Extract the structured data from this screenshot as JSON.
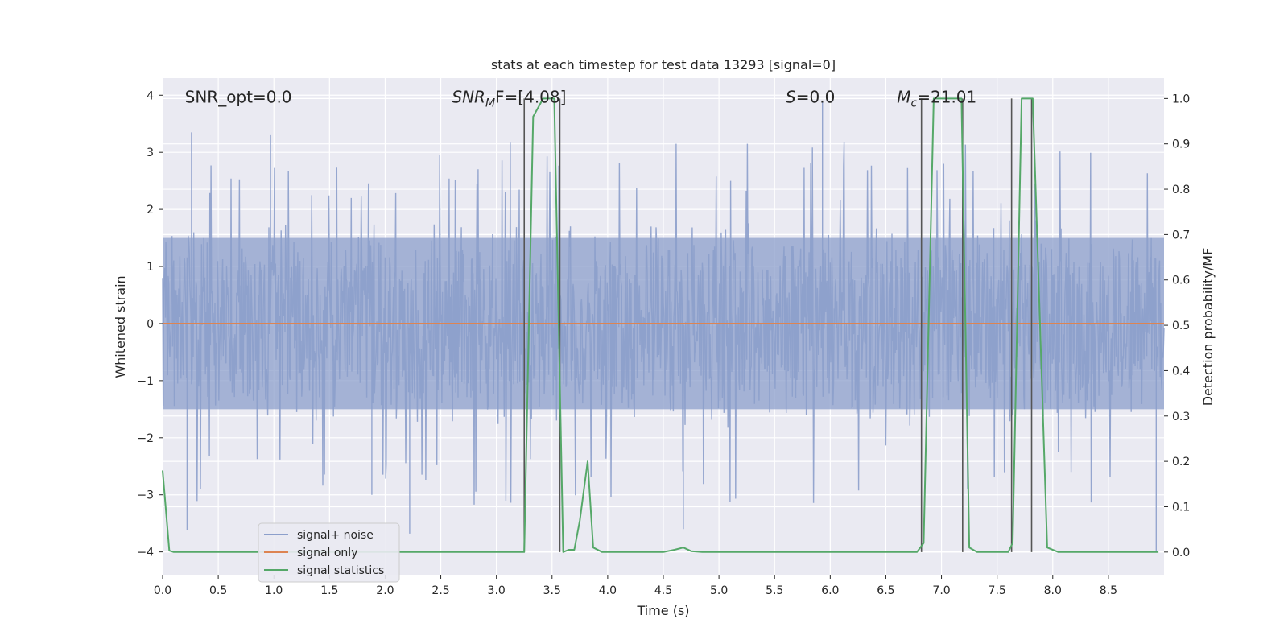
{
  "chart_data": {
    "type": "line",
    "title": "stats at each timestep for test data 13293 [signal=0]",
    "xlabel": "Time (s)",
    "ylabel_left": "Whitened strain",
    "ylabel_right": "Detection probability/MF",
    "xlim": [
      0.0,
      9.0
    ],
    "ylim_left": [
      -4.4,
      4.3
    ],
    "ylim_right": [
      -0.05,
      1.045
    ],
    "x_ticks": [
      "0.0",
      "0.5",
      "1.0",
      "1.5",
      "2.0",
      "2.5",
      "3.0",
      "3.5",
      "4.0",
      "4.5",
      "5.0",
      "5.5",
      "6.0",
      "6.5",
      "7.0",
      "7.5",
      "8.0",
      "8.5"
    ],
    "y_ticks_left": [
      "4",
      "3",
      "2",
      "1",
      "0",
      "−1",
      "−2",
      "−3",
      "−4"
    ],
    "y_ticks_right": [
      "1.0",
      "0.9",
      "0.8",
      "0.7",
      "0.6",
      "0.5",
      "0.4",
      "0.3",
      "0.2",
      "0.1",
      "0.0"
    ],
    "grid": true,
    "colors": {
      "noise": "#8c9fcb",
      "signal": "#dd8452",
      "stats": "#55a868",
      "vline": "#555555",
      "background": "#eaeaf2"
    },
    "annotations": [
      {
        "label": "SNR_opt=0.0",
        "x": 0.2,
        "y": 3.9
      },
      {
        "label": "SNR",
        "sub": "M",
        "rest": "F=[4.08]",
        "x": 2.6,
        "y": 3.9
      },
      {
        "label": "S",
        "rest": "=0.0",
        "x": 5.6,
        "y": 3.9
      },
      {
        "label": "M",
        "sub": "c",
        "rest": "=21.01",
        "x": 6.6,
        "y": 3.9
      }
    ],
    "vertical_lines": [
      3.25,
      3.57,
      6.82,
      7.19,
      7.63,
      7.81
    ],
    "series": [
      {
        "name": "signal+ noise",
        "kind": "noise",
        "amplitude_typical": 1.7,
        "extremes": [
          [
            0.26,
            3.35
          ],
          [
            0.97,
            3.3
          ],
          [
            5.93,
            3.9
          ],
          [
            0.22,
            -3.62
          ],
          [
            2.22,
            -3.68
          ],
          [
            8.93,
            -4.0
          ],
          [
            4.68,
            -3.6
          ],
          [
            1.88,
            -3.0
          ]
        ]
      },
      {
        "name": "signal only",
        "kind": "line",
        "x": [
          0.0,
          9.0
        ],
        "y": [
          0.0,
          0.0
        ]
      },
      {
        "name": "signal statistics",
        "kind": "stats",
        "x": [
          0.0,
          0.06,
          0.1,
          3.25,
          3.33,
          3.42,
          3.52,
          3.6,
          3.65,
          3.7,
          3.75,
          3.82,
          3.87,
          3.95,
          4.5,
          4.6,
          4.68,
          4.75,
          4.85,
          6.78,
          6.84,
          6.93,
          7.18,
          7.25,
          7.32,
          7.6,
          7.64,
          7.72,
          7.82,
          7.95,
          8.05,
          8.95
        ],
        "y": [
          0.18,
          0.003,
          0.0,
          0.0,
          0.96,
          1.0,
          1.0,
          0.0,
          0.005,
          0.005,
          0.07,
          0.2,
          0.01,
          0.0,
          0.0,
          0.005,
          0.01,
          0.002,
          0.0,
          0.0,
          0.02,
          1.0,
          1.0,
          0.01,
          0.0,
          0.0,
          0.02,
          1.0,
          1.0,
          0.01,
          0.0,
          0.0
        ]
      }
    ],
    "legend": {
      "placement": "lower-left",
      "entries": [
        {
          "label": "signal+ noise",
          "color": "#8c9fcb"
        },
        {
          "label": "signal only",
          "color": "#dd8452"
        },
        {
          "label": "signal statistics",
          "color": "#55a868"
        }
      ]
    }
  }
}
